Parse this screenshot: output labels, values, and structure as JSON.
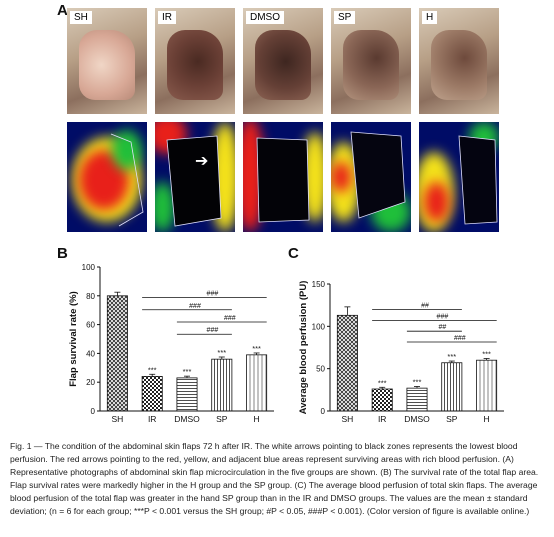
{
  "panels": {
    "a": "A",
    "b": "B",
    "c": "C"
  },
  "groups": [
    "SH",
    "IR",
    "DMSO",
    "SP",
    "H"
  ],
  "chart_data": [
    {
      "type": "bar",
      "categories": [
        "SH",
        "IR",
        "DMSO",
        "SP",
        "H"
      ],
      "values": [
        80,
        24,
        23,
        36,
        39
      ],
      "errors": [
        2.5,
        1.5,
        1.2,
        1.5,
        1.3
      ],
      "ylabel": "Flap survival rate (%)",
      "ylim": [
        0,
        100
      ],
      "yticks": [
        0,
        20,
        40,
        60,
        80,
        100
      ],
      "sig_labels": [
        "",
        "***",
        "***",
        "***",
        "***"
      ],
      "brackets": [
        {
          "from": 2,
          "to": 3,
          "label": "###"
        },
        {
          "from": 2,
          "to": 4,
          "label": "###"
        },
        {
          "from": 1,
          "to": 3,
          "label": "###"
        },
        {
          "from": 1,
          "to": 4,
          "label": "###"
        }
      ]
    },
    {
      "type": "bar",
      "categories": [
        "SH",
        "IR",
        "DMSO",
        "SP",
        "H"
      ],
      "values": [
        113,
        26,
        27,
        57,
        60
      ],
      "errors": [
        10,
        2,
        2,
        2,
        2
      ],
      "ylabel": "Average blood perfusion (PU)",
      "ylim": [
        0,
        150
      ],
      "yticks": [
        0,
        50,
        100,
        150
      ],
      "sig_labels": [
        "",
        "***",
        "***",
        "***",
        "***"
      ],
      "brackets": [
        {
          "from": 2,
          "to": 4,
          "label": "###"
        },
        {
          "from": 2,
          "to": 3,
          "label": "##"
        },
        {
          "from": 1,
          "to": 4,
          "label": "###"
        },
        {
          "from": 1,
          "to": 3,
          "label": "##"
        }
      ]
    }
  ],
  "caption": "Fig. 1 — The condition of the abdominal skin flaps 72 h after IR. The white arrows pointing to black zones represents the lowest blood perfusion. The red arrows pointing to the red, yellow, and adjacent blue areas represent surviving areas with rich blood perfusion. (A) Representative photographs of abdominal skin flap microcirculation in the five groups are shown. (B) The survival rate of the total flap area. Flap survival rates were markedly higher in the H group and the SP group. (C) The average blood perfusion of total skin flaps. The average blood perfusion of the total flap was greater in the hand SP group than in the IR and DMSO groups. The values are the mean ± standard deviation; (n = 6 for each group; ***P < 0.001 versus the SH group; #P < 0.05, ###P < 0.001). (Color version of figure is available online.)",
  "colors": {
    "background": "#ffffff",
    "ink": "#111111",
    "perfusion_low": "#000c66",
    "perfusion_high": "#e8201a"
  }
}
